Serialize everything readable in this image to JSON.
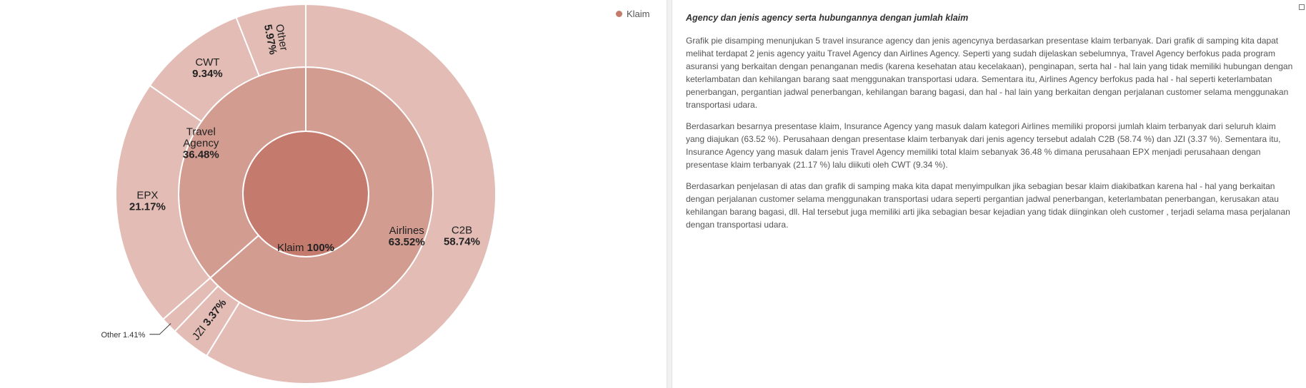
{
  "legend": {
    "label": "Klaim",
    "color": "#c47b6e"
  },
  "chart_data": {
    "type": "sunburst",
    "title": "",
    "root": {
      "name": "Klaim",
      "value": "100%"
    },
    "levels": [
      {
        "name": "agency_type",
        "segments": [
          {
            "name": "Airlines",
            "value": 63.52,
            "label": "Airlines",
            "pct": "63.52%"
          },
          {
            "name": "Travel Agency",
            "value": 36.48,
            "label": "Travel Agency",
            "pct": "36.48%"
          }
        ]
      },
      {
        "name": "agency",
        "segments": [
          {
            "name": "C2B",
            "parent": "Airlines",
            "value": 58.74,
            "label": "C2B",
            "pct": "58.74%"
          },
          {
            "name": "JZI",
            "parent": "Airlines",
            "value": 3.37,
            "label": "JZI",
            "pct": "3.37%"
          },
          {
            "name": "Other",
            "parent": "Airlines",
            "value": 1.41,
            "label": "Other",
            "pct": "1.41%"
          },
          {
            "name": "EPX",
            "parent": "Travel Agency",
            "value": 21.17,
            "label": "EPX",
            "pct": "21.17%"
          },
          {
            "name": "CWT",
            "parent": "Travel Agency",
            "value": 9.34,
            "label": "CWT",
            "pct": "9.34%"
          },
          {
            "name": "Other",
            "parent": "Travel Agency",
            "value": 5.97,
            "label": "Other",
            "pct": "5.97%"
          }
        ]
      }
    ],
    "colors": {
      "root": "#c47b6e",
      "level1": "#d39c91",
      "level2": "#e2bcb5",
      "stroke": "#ffffff"
    }
  },
  "article": {
    "title": "Agency dan jenis agency serta hubungannya dengan jumlah klaim",
    "paragraphs": [
      "Grafik pie disamping menunjukan 5 travel insurance agency dan jenis agencynya berdasarkan presentase klaim terbanyak. Dari grafik di samping kita dapat melihat terdapat 2 jenis agency yaitu Travel Agency dan Airlines Agency. Seperti yang sudah dijelaskan sebelumnya, Travel Agency berfokus pada program asuransi yang berkaitan dengan penanganan medis (karena kesehatan atau kecelakaan), penginapan, serta hal - hal lain yang tidak memiliki hubungan dengan keterlambatan dan kehilangan barang saat menggunakan transportasi udara. Sementara itu, Airlines Agency berfokus pada hal - hal seperti keterlambatan penerbangan, pergantian jadwal penerbangan, kehilangan barang bagasi, dan hal - hal lain yang berkaitan dengan perjalanan customer selama menggunakan transportasi udara.",
      "Berdasarkan besarnya presentase klaim, Insurance Agency yang masuk dalam kategori Airlines memiliki proporsi jumlah klaim terbanyak dari seluruh klaim yang diajukan (63.52 %). Perusahaan dengan presentase klaim terbanyak dari jenis agency tersebut adalah C2B (58.74 %) dan JZI (3.37 %). Sementara itu, Insurance Agency yang masuk dalam jenis Travel Agency memiliki total klaim sebanyak 36.48 % dimana perusahaan EPX menjadi perusahaan dengan presentase klaim terbanyak (21.17 %) lalu diikuti oleh CWT (9.34 %).",
      "Berdasarkan penjelasan di atas dan grafik di samping maka kita dapat menyimpulkan jika sebagian besar klaim diakibatkan karena hal - hal yang berkaitan dengan perjalanan customer selama menggunakan transportasi udara seperti pergantian jadwal penerbangan, keterlambatan penerbangan, kerusakan atau kehilangan barang bagasi, dll. Hal tersebut juga memiliki arti jika sebagian besar kejadian yang tidak diinginkan oleh customer , terjadi selama masa perjalanan dengan transportasi udara."
    ]
  }
}
